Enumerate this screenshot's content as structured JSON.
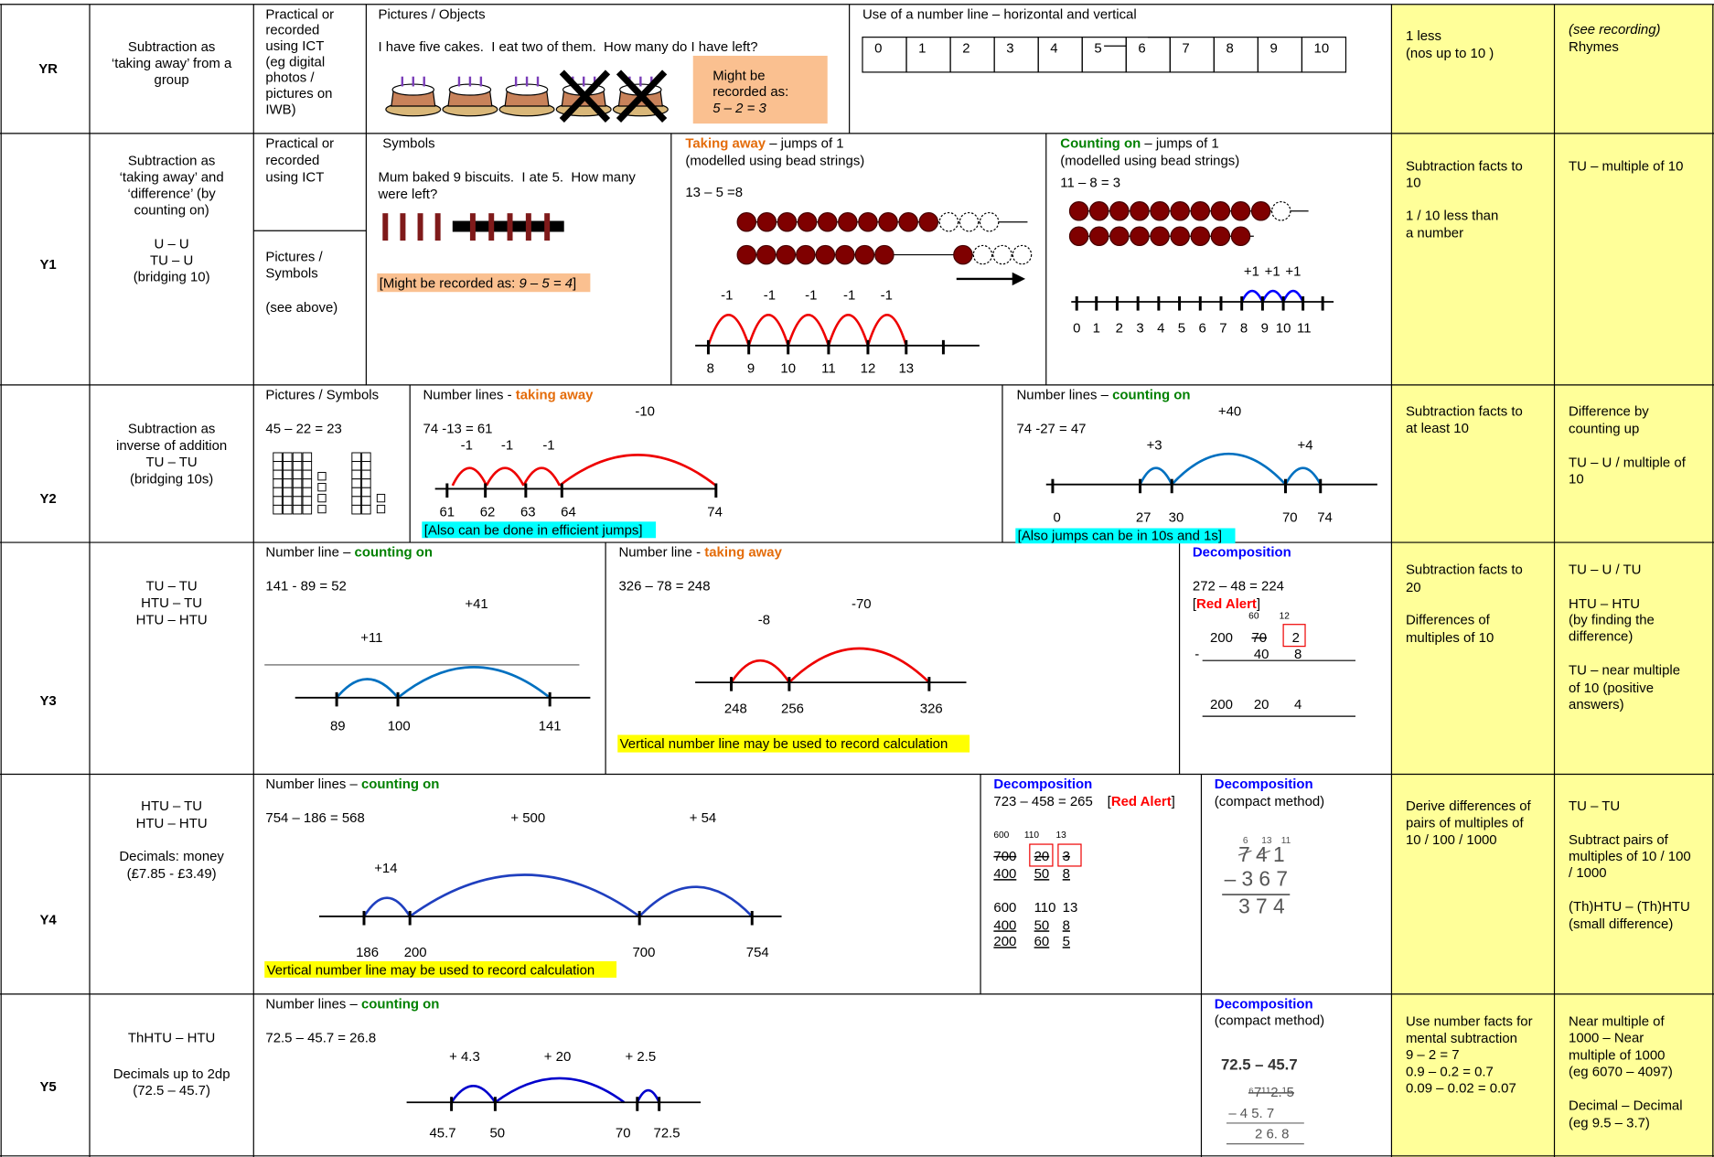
{
  "rows": [
    {
      "year": "YR",
      "objective": [
        "Subtraction as",
        "‘taking away’ from a",
        "group"
      ],
      "method": [
        "Practical or",
        "recorded",
        "using ICT",
        "(eg digital",
        "photos /",
        "pictures on",
        "IWB)"
      ],
      "pictures_heading": "Pictures / Objects",
      "problem": "I have five cakes.  I eat two of them.  How many do I have left?",
      "recorded": [
        "Might be",
        "recorded as:",
        "5 – 2 = 3"
      ],
      "number_line_heading": "Use of a number line – horizontal and vertical",
      "number_line": [
        0,
        1,
        2,
        3,
        4,
        5,
        6,
        7,
        8,
        9,
        10
      ],
      "mental": [
        "1 less",
        "(nos up to 10 )"
      ],
      "vocabulary": [
        "(see recording)",
        "Rhymes"
      ]
    },
    {
      "year": "Y1",
      "objective": [
        "Subtraction as",
        "‘taking away’ and",
        "‘difference’ (by",
        "counting on)",
        "U – U",
        "TU – U",
        "(bridging 10)"
      ],
      "method": [
        "Practical or",
        "recorded",
        "using ICT"
      ],
      "method2": [
        "Pictures /",
        "Symbols",
        "(see above)"
      ],
      "symbols_heading": "Symbols",
      "problem": [
        "Mum baked 9 biscuits.  I ate 5.  How many",
        "were left?"
      ],
      "recorded": [
        "[Might be recorded as: ",
        "9 – 5 = 4",
        "]"
      ],
      "taking_away": {
        "label": "Taking away",
        "heading": " – jumps of 1",
        "note": "(modelled using bead strings)",
        "sum": "13 – 5 =8",
        "jumps": [
          "-1",
          "-1",
          "-1",
          "-1",
          "-1"
        ],
        "ticks": [
          8,
          9,
          10,
          11,
          12,
          13
        ]
      },
      "counting_on": {
        "label": "Counting on",
        "heading": " – jumps of 1",
        "note": "(modelled using bead strings)",
        "sum": "11 – 8 = 3",
        "jumps": [
          "+1",
          "+1",
          "+1"
        ],
        "ticks": [
          0,
          1,
          2,
          3,
          4,
          5,
          6,
          7,
          8,
          9,
          10,
          11
        ]
      },
      "mental": [
        "Subtraction facts to",
        "10",
        "1 / 10 less than",
        "a number"
      ],
      "vocabulary": [
        "TU – multiple of 10"
      ]
    },
    {
      "year": "Y2",
      "objective": [
        "Subtraction as",
        "inverse of addition",
        "TU – TU",
        "(bridging 10s)"
      ],
      "pictures_heading": "Pictures / Symbols",
      "pictures_sum": "45 – 22 = 23",
      "taking_away": {
        "heading": "Number lines - ",
        "label": "taking away",
        "sum": "74 -13 = 61",
        "jumps": [
          "-1",
          "-1",
          "-1",
          "-10"
        ],
        "ticks": [
          61,
          62,
          63,
          64,
          74
        ],
        "note": "[Also can be done in efficient jumps]"
      },
      "counting_on": {
        "heading": "Number lines – ",
        "label": "counting on",
        "sum": "74 -27 = 47",
        "jumps": [
          "+3",
          "+40",
          "+4"
        ],
        "ticks": [
          0,
          27,
          30,
          70,
          74
        ],
        "note": "[Also jumps can be in 10s and 1s]"
      },
      "mental": [
        "Subtraction facts to",
        "at least 10"
      ],
      "vocabulary": [
        "Difference by",
        "counting up",
        "TU – U / multiple of",
        "10"
      ]
    },
    {
      "year": "Y3",
      "objective": [
        "TU – TU",
        "HTU – TU",
        "HTU – HTU"
      ],
      "counting_on": {
        "heading": "Number line – ",
        "label": "counting on",
        "sum": "141 - 89 = 52",
        "jumps": [
          "+11",
          "+41"
        ],
        "ticks": [
          89,
          100,
          141
        ]
      },
      "taking_away": {
        "heading": "Number line - ",
        "label": "taking away",
        "sum": "326 – 78 = 248",
        "jumps": [
          "-8",
          "-70"
        ],
        "ticks": [
          248,
          256,
          326
        ],
        "note": "Vertical number line may be used to record calculation"
      },
      "decomposition": {
        "label": "Decomposition",
        "sum": "272 – 48 = 224",
        "alert": [
          "[",
          "Red Alert",
          "]"
        ],
        "exchange": [
          60,
          12
        ],
        "sign": "-",
        "rows": [
          [
            200,
            70,
            2
          ],
          [
            40,
            8
          ],
          [
            200,
            20,
            4
          ]
        ]
      },
      "mental": [
        "Subtraction facts to",
        "20",
        "Differences of",
        "multiples of 10"
      ],
      "vocabulary": [
        "TU – U / TU",
        "HTU – HTU",
        "(by finding the",
        "difference)",
        "TU – near multiple",
        "of 10 (positive",
        "answers)"
      ]
    },
    {
      "year": "Y4",
      "objective": [
        "HTU – TU",
        "HTU – HTU",
        "Decimals: money",
        "(£7.85 - £3.49)"
      ],
      "counting_on": {
        "heading": "Number lines – ",
        "label": "counting on",
        "sum": "754 – 186 = 568",
        "jumps": [
          "+14",
          "+ 500",
          "+ 54"
        ],
        "ticks": [
          186,
          200,
          700,
          754
        ],
        "note": "Vertical number line may be used to record calculation"
      },
      "decomposition": {
        "label": "Decomposition",
        "sum": "723 – 458 = 265",
        "alert": [
          "[",
          "Red Alert",
          "]"
        ],
        "exchange": [
          600,
          110,
          13
        ],
        "rows": [
          [
            700,
            20,
            3
          ],
          [
            400,
            50,
            8
          ],
          [
            600,
            110,
            13
          ],
          [
            400,
            50,
            8
          ],
          [
            200,
            60,
            5
          ]
        ]
      },
      "compact": {
        "label": "Decomposition",
        "note": "(compact method)",
        "exchange": [
          6,
          13,
          11
        ],
        "rows": [
          "7 4 1",
          "– 3 6 7",
          "3 7 4"
        ]
      },
      "mental": [
        "Derive differences of",
        "pairs of multiples of",
        "10 / 100 / 1000"
      ],
      "vocabulary": [
        "TU – TU",
        "Subtract pairs of",
        "multiples of 10 / 100",
        "/ 1000",
        "(Th)HTU – (Th)HTU",
        "(small difference)"
      ]
    },
    {
      "year": "Y5",
      "objective": [
        "ThHTU – HTU",
        "Decimals up to 2dp",
        "(72.5 – 45.7)"
      ],
      "counting_on": {
        "heading": "Number lines – ",
        "label": "counting on",
        "sum": "72.5 – 45.7 = 26.8",
        "jumps": [
          "+ 4.3",
          "+ 20",
          "+ 2.5"
        ],
        "ticks": [
          45.7,
          50,
          70,
          72.5
        ]
      },
      "compact": {
        "label": "Decomposition",
        "note": "(compact method)",
        "sum": "72.5 – 45.7",
        "rows": [
          "⁶7¹¹2.¹5",
          "– 4 5. 7",
          "2 6. 8"
        ]
      },
      "mental": [
        "Use number facts for",
        "mental subtraction",
        "9 – 2 = 7",
        "0.9 – 0.2 = 0.7",
        "0.09 – 0.02 = 0.07"
      ],
      "vocabulary": [
        "Near multiple of",
        "1000 – Near",
        "multiple of 1000",
        "(eg 6070 – 4097)",
        "Decimal – Decimal",
        "(eg 9.5 – 3.7)"
      ]
    }
  ]
}
